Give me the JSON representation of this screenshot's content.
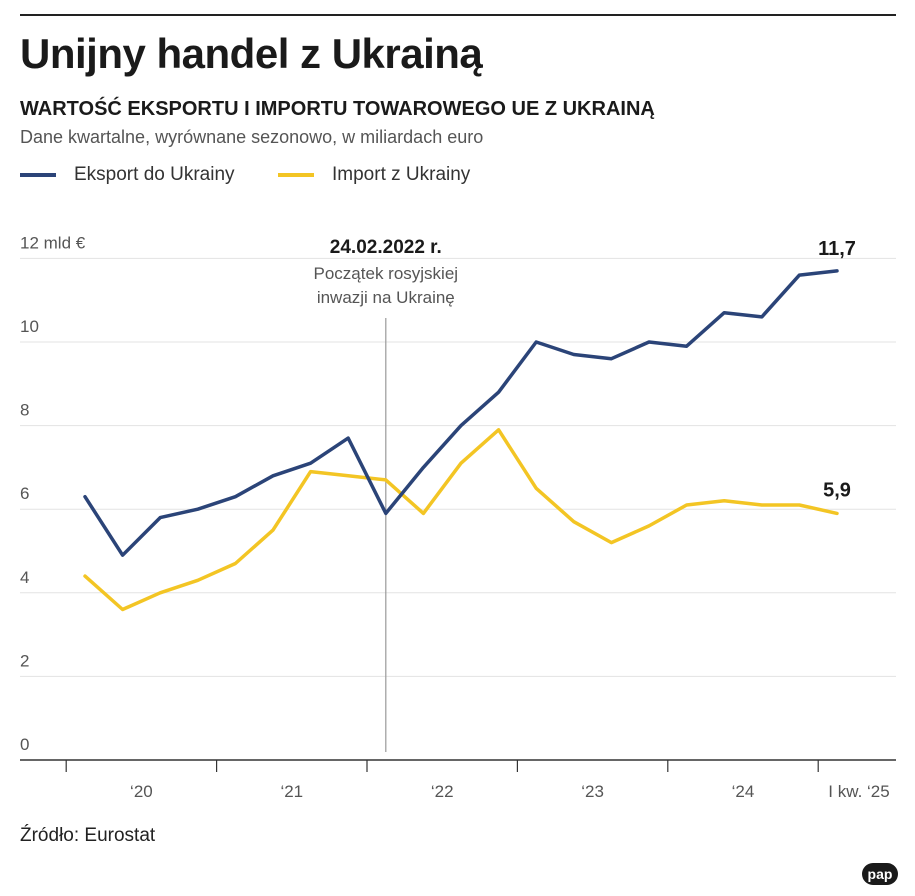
{
  "title": "Unijny handel z Ukrainą",
  "subtitle": "WARTOŚĆ EKSPORTU I IMPORTU TOWAROWEGO UE Z UKRAINĄ",
  "note": "Dane kwartalne, wyrównane sezonowo, w miliardach euro",
  "source": "Źródło: Eurostat",
  "logo": "pap",
  "colors": {
    "export": "#2b4478",
    "import": "#f3c524",
    "grid": "#e3e3e3",
    "axis": "#333333",
    "text": "#555555"
  },
  "chart_data": {
    "type": "line",
    "x": [
      "2020 Q1",
      "2020 Q2",
      "2020 Q3",
      "2020 Q4",
      "2021 Q1",
      "2021 Q2",
      "2021 Q3",
      "2021 Q4",
      "2022 Q1",
      "2022 Q2",
      "2022 Q3",
      "2022 Q4",
      "2023 Q1",
      "2023 Q2",
      "2023 Q3",
      "2023 Q4",
      "2024 Q1",
      "2024 Q2",
      "2024 Q3",
      "2024 Q4",
      "2025 Q1"
    ],
    "series": [
      {
        "name": "Eksport do Ukrainy",
        "color": "#2b4478",
        "values": [
          6.3,
          4.9,
          5.8,
          6.0,
          6.3,
          6.8,
          7.1,
          7.7,
          5.9,
          7.0,
          8.0,
          8.8,
          10.0,
          9.7,
          9.6,
          10.0,
          9.9,
          10.7,
          10.6,
          11.6,
          11.7
        ]
      },
      {
        "name": "Import z Ukrainy",
        "color": "#f3c524",
        "values": [
          4.4,
          3.6,
          4.0,
          4.3,
          4.7,
          5.5,
          6.9,
          6.8,
          6.7,
          5.9,
          7.1,
          7.9,
          6.5,
          5.7,
          5.2,
          5.6,
          6.1,
          6.2,
          6.1,
          6.1,
          5.9
        ]
      }
    ],
    "y_ticks": [
      "12 mld €",
      "10",
      "8",
      "6",
      "4",
      "2",
      "0"
    ],
    "y_tick_values": [
      12,
      10,
      8,
      6,
      4,
      2,
      0
    ],
    "ylim": [
      0,
      12
    ],
    "x_tick_labels": [
      "‘20",
      "‘21",
      "‘22",
      "‘23",
      "‘24",
      "I kw. ‘25"
    ],
    "end_labels": {
      "export": "11,7",
      "import": "5,9"
    },
    "annotation": {
      "x": "2022 Q1",
      "date": "24.02.2022 r.",
      "line1": "Początek rosyjskiej",
      "line2": "inwazji na Ukrainę"
    },
    "grid": true,
    "legend": "top-left"
  }
}
